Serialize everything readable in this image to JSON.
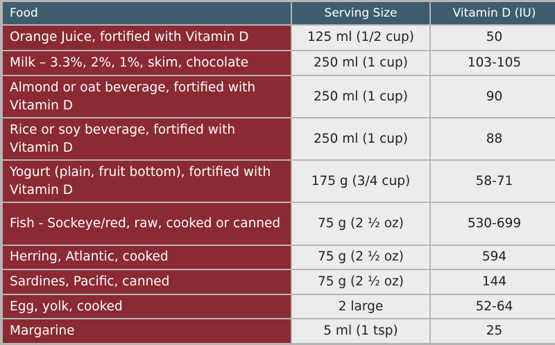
{
  "headers": {
    "food": "Food",
    "serving_size": "Serving Size",
    "vitamin_d": "Vitamin D (IU)"
  },
  "rows": [
    {
      "food": "Orange Juice, fortified with Vitamin D",
      "serving": "125 ml (1/2 cup)",
      "vitd": "50"
    },
    {
      "food": "Milk – 3.3%, 2%, 1%, skim, chocolate",
      "serving": "250 ml (1 cup)",
      "vitd": "103-105"
    },
    {
      "food": "Almond or oat beverage, fortified with Vitamin D",
      "serving": "250 ml (1 cup)",
      "vitd": "90"
    },
    {
      "food": "Rice or soy beverage, fortified with Vitamin D",
      "serving": "250 ml (1 cup)",
      "vitd": "88"
    },
    {
      "food": "Yogurt (plain, fruit bottom), fortified with Vitamin D",
      "serving": "175 g (3/4 cup)",
      "vitd": "58-71"
    },
    {
      "food": "Fish - Sockeye/red, raw, cooked or canned",
      "serving": "75 g (2 ½ oz)",
      "vitd": "530-699"
    },
    {
      "food": "Herring, Atlantic, cooked",
      "serving": "75 g (2 ½ oz)",
      "vitd": "594"
    },
    {
      "food": "Sardines, Pacific, canned",
      "serving": "75 g (2 ½ oz)",
      "vitd": "144"
    },
    {
      "food": "Egg, yolk, cooked",
      "serving": "2 large",
      "vitd": "52-64"
    },
    {
      "food": "Margarine",
      "serving": "5 ml (1 tsp)",
      "vitd": "25"
    }
  ],
  "colors": {
    "header_bg": "#3e5c6e",
    "food_col_bg": "#8b2a33",
    "value_col_bg": "#ececec",
    "grid": "#b6b6b6"
  }
}
